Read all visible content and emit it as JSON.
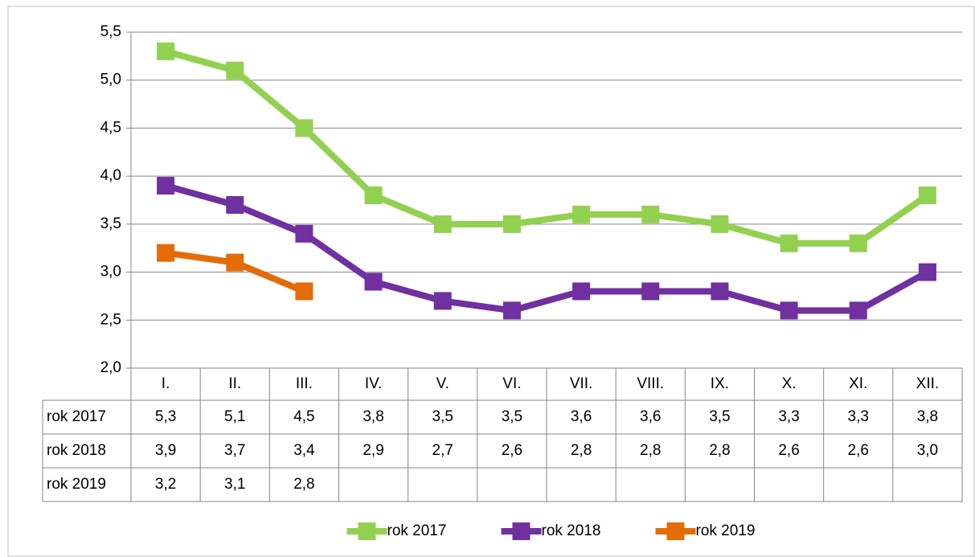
{
  "chart_data": {
    "type": "line",
    "categories": [
      "I.",
      "II.",
      "III.",
      "IV.",
      "V.",
      "VI.",
      "VII.",
      "VIII.",
      "IX.",
      "X.",
      "XI.",
      "XII."
    ],
    "series": [
      {
        "name": "rok 2017",
        "color": "#92d050",
        "values": [
          5.3,
          5.1,
          4.5,
          3.8,
          3.5,
          3.5,
          3.6,
          3.6,
          3.5,
          3.3,
          3.3,
          3.8
        ],
        "value_labels": [
          "5,3",
          "5,1",
          "4,5",
          "3,8",
          "3,5",
          "3,5",
          "3,6",
          "3,6",
          "3,5",
          "3,3",
          "3,3",
          "3,8"
        ]
      },
      {
        "name": "rok 2018",
        "color": "#7030a0",
        "values": [
          3.9,
          3.7,
          3.4,
          2.9,
          2.7,
          2.6,
          2.8,
          2.8,
          2.8,
          2.6,
          2.6,
          3.0
        ],
        "value_labels": [
          "3,9",
          "3,7",
          "3,4",
          "2,9",
          "2,7",
          "2,6",
          "2,8",
          "2,8",
          "2,8",
          "2,6",
          "2,6",
          "3,0"
        ]
      },
      {
        "name": "rok 2019",
        "color": "#e36c09",
        "values": [
          3.2,
          3.1,
          2.8,
          null,
          null,
          null,
          null,
          null,
          null,
          null,
          null,
          null
        ],
        "value_labels": [
          "3,2",
          "3,1",
          "2,8",
          null,
          null,
          null,
          null,
          null,
          null,
          null,
          null,
          null
        ]
      }
    ],
    "ylim": [
      2,
      5.5
    ],
    "yticks": [
      {
        "value": 2,
        "label": "2,0"
      },
      {
        "value": 2.5,
        "label": "2,5"
      },
      {
        "value": 3,
        "label": "3,0"
      },
      {
        "value": 3.5,
        "label": "3,5"
      },
      {
        "value": 4,
        "label": "4,0"
      },
      {
        "value": 4.5,
        "label": "4,5"
      },
      {
        "value": 5,
        "label": "5,0"
      },
      {
        "value": 5.5,
        "label": "5,5"
      }
    ],
    "grid": true,
    "legend": "bottom"
  }
}
